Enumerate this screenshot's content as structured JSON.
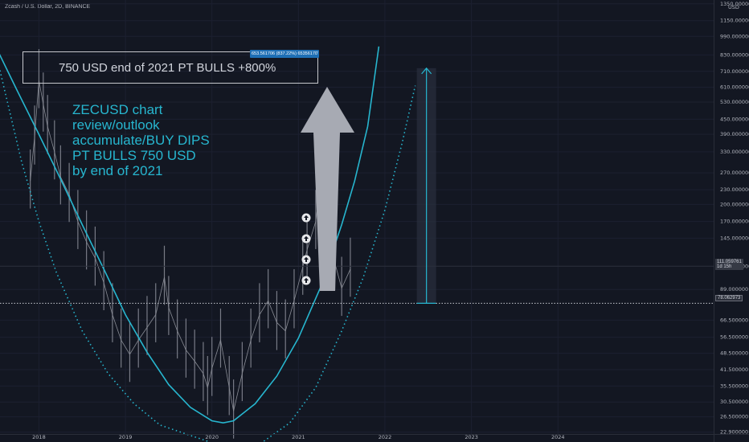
{
  "header": {
    "symbol_title": "Zcash / U.S. Dollar, 2D, BINANCE"
  },
  "annotations": {
    "target_box_text": "750 USD end of 2021 PT BULLS +800%",
    "note_lines": [
      "ZECUSD chart",
      "review/outlook",
      "accumulate/BUY DIPS",
      "PT BULLS 750 USD",
      "by end of 2021"
    ],
    "measure_label": "653.561706 (837.22%) 65356170̆"
  },
  "price_tags": {
    "current_price": "111.059761",
    "countdown": "1d 15h",
    "horizontal_line": "78.062973"
  },
  "chart_data": {
    "type": "line",
    "title": "",
    "y_axis_unit": "USD",
    "y_scale": "log",
    "y_ticks": [
      22.9,
      26.5,
      30.5,
      35.5,
      41.5,
      48.5,
      56.5,
      66.5,
      89.0,
      111.0,
      145.0,
      170.0,
      200.0,
      230.0,
      270.0,
      330.0,
      390.0,
      450.0,
      530.0,
      610.0,
      710.0,
      830.0,
      990.0,
      1150.0,
      1350.0
    ],
    "y_tick_labels": [
      "22.900000",
      "26.500000",
      "30.500000",
      "35.500000",
      "41.500000",
      "48.500000",
      "56.500000",
      "66.500000",
      "89.000000",
      "111.000000",
      "145.000000",
      "170.000000",
      "200.000000",
      "230.000000",
      "270.000000",
      "330.000000",
      "390.000000",
      "450.000000",
      "530.000000",
      "610.000000",
      "710.000000",
      "830.000000",
      "990.000000",
      "1150.000000",
      "1350.000000"
    ],
    "x_ticks": [
      2018,
      2019,
      2020,
      2021,
      2022,
      2023,
      2024
    ],
    "x_tick_labels": [
      "2018",
      "2019",
      "2020",
      "2021",
      "2022",
      "2023",
      "2024"
    ],
    "ylim": [
      22.5,
      1400
    ],
    "xlim": [
      2017.55,
      2025.8
    ],
    "horizontal_line": 78.06,
    "current_price": 111.06,
    "measure": {
      "x": 2022.48,
      "from": 78.06,
      "to": 731.62
    },
    "series": [
      {
        "name": "",
        "type": "candles",
        "x": [
          2017.9,
          2017.95,
          2018.0,
          2018.05,
          2018.1,
          2018.18,
          2018.25,
          2018.35,
          2018.45,
          2018.55,
          2018.65,
          2018.75,
          2018.85,
          2018.95,
          2019.05,
          2019.15,
          2019.25,
          2019.35,
          2019.45,
          2019.5,
          2019.6,
          2019.7,
          2019.8,
          2019.9,
          2019.95,
          2020.0,
          2020.1,
          2020.2,
          2020.25,
          2020.35,
          2020.45,
          2020.55,
          2020.65,
          2020.75,
          2020.85,
          2020.95,
          2021.05,
          2021.1,
          2021.2,
          2021.28,
          2021.35,
          2021.42,
          2021.5,
          2021.6
        ],
        "values": [
          250,
          380,
          650,
          520,
          420,
          330,
          260,
          220,
          170,
          140,
          120,
          95,
          70,
          55,
          48,
          55,
          62,
          70,
          100,
          75,
          60,
          50,
          45,
          40,
          35,
          42,
          55,
          35,
          28,
          40,
          55,
          70,
          80,
          65,
          60,
          80,
          110,
          130,
          170,
          300,
          150,
          115,
          90,
          108
        ]
      },
      {
        "name": "",
        "type": "curve",
        "style": "solid",
        "x": [
          2017.52,
          2017.75,
          2018.0,
          2018.25,
          2018.5,
          2018.75,
          2019.0,
          2019.25,
          2019.5,
          2019.75,
          2020.0,
          2020.13,
          2020.25,
          2020.5,
          2020.75,
          2021.0,
          2021.25,
          2021.5,
          2021.65,
          2021.8,
          2021.93
        ],
        "values": [
          870,
          590,
          390,
          255,
          165,
          108,
          70,
          49,
          36,
          29,
          25.5,
          25,
          25.5,
          30,
          39,
          56,
          90,
          165,
          250,
          420,
          900
        ]
      },
      {
        "name": "",
        "type": "curve",
        "style": "dotted",
        "x": [
          2017.38,
          2017.6,
          2017.8,
          2018.0,
          2018.2,
          2018.5,
          2018.8,
          2019.1,
          2019.4,
          2019.7,
          2019.95
        ],
        "values": [
          1300,
          600,
          300,
          170,
          105,
          60,
          40,
          30,
          24.5,
          22.5,
          21
        ]
      },
      {
        "name": "",
        "type": "curve",
        "style": "dotted",
        "x": [
          2020.6,
          2020.9,
          2021.2,
          2021.5,
          2021.75,
          2022.0,
          2022.2,
          2022.35
        ],
        "values": [
          21,
          25,
          35,
          60,
          100,
          190,
          360,
          620
        ]
      }
    ]
  }
}
